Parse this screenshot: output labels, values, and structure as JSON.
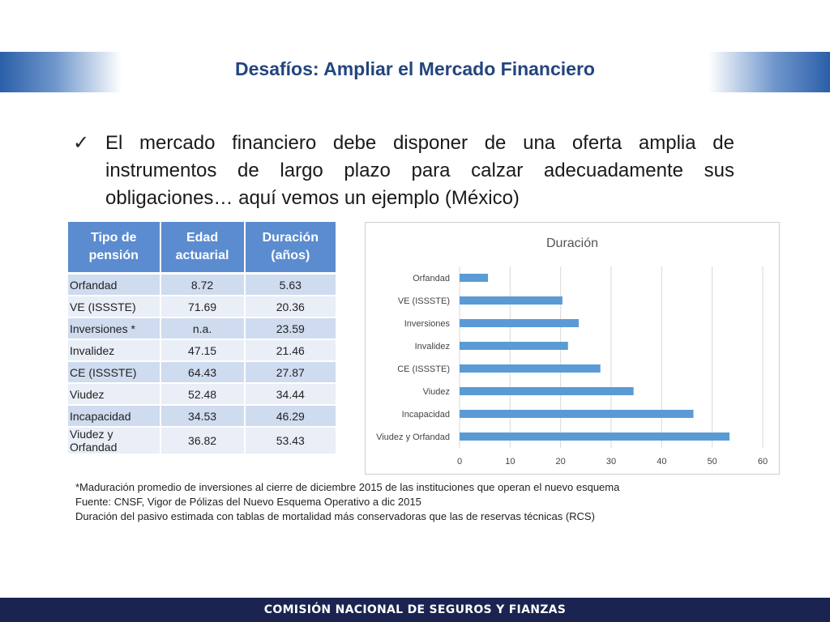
{
  "slide": {
    "title": "Desafíos: Ampliar el Mercado Financiero",
    "bullet_icon": "check-mark-icon",
    "bullet_text": "El mercado financiero debe disponer de una oferta amplia de instrumentos de largo plazo para calzar adecuadamente sus obligaciones… aquí vemos un ejemplo (México)",
    "footer_text": "COMISIÓN NACIONAL DE SEGUROS Y FIANZAS"
  },
  "table": {
    "headers": [
      "Tipo de pensión",
      "Edad actuarial",
      "Duración (años)"
    ],
    "rows": [
      [
        "Orfandad",
        "8.72",
        "5.63"
      ],
      [
        "VE (ISSSTE)",
        "71.69",
        "20.36"
      ],
      [
        "Inversiones *",
        "n.a.",
        "23.59"
      ],
      [
        "Invalidez",
        "47.15",
        "21.46"
      ],
      [
        "CE (ISSSTE)",
        "64.43",
        "27.87"
      ],
      [
        "Viudez",
        "52.48",
        "34.44"
      ],
      [
        "Incapacidad",
        "34.53",
        "46.29"
      ],
      [
        "Viudez y Orfandad",
        "36.82",
        "53.43"
      ]
    ]
  },
  "chart_data": {
    "type": "bar",
    "orientation": "horizontal",
    "title": "Duración",
    "categories": [
      "Orfandad",
      "VE (ISSSTE)",
      "Inversiones",
      "Invalidez",
      "CE (ISSSTE)",
      "Viudez",
      "Incapacidad",
      "Viudez y Orfandad"
    ],
    "values": [
      5.63,
      20.36,
      23.59,
      21.46,
      27.87,
      34.44,
      46.29,
      53.43
    ],
    "xlim": [
      0,
      60
    ],
    "xticks": [
      0,
      10,
      20,
      30,
      40,
      50,
      60
    ],
    "grid": true,
    "bar_color": "#5b9bd5"
  },
  "notes": [
    "*Maduración promedio de inversiones al cierre de diciembre 2015 de las instituciones que operan el nuevo esquema",
    "Fuente: CNSF, Vigor de Pólizas del Nuevo Esquema Operativo a dic 2015",
    "Duración del pasivo estimada con tablas de mortalidad más conservadoras que las de reservas técnicas (RCS)"
  ]
}
